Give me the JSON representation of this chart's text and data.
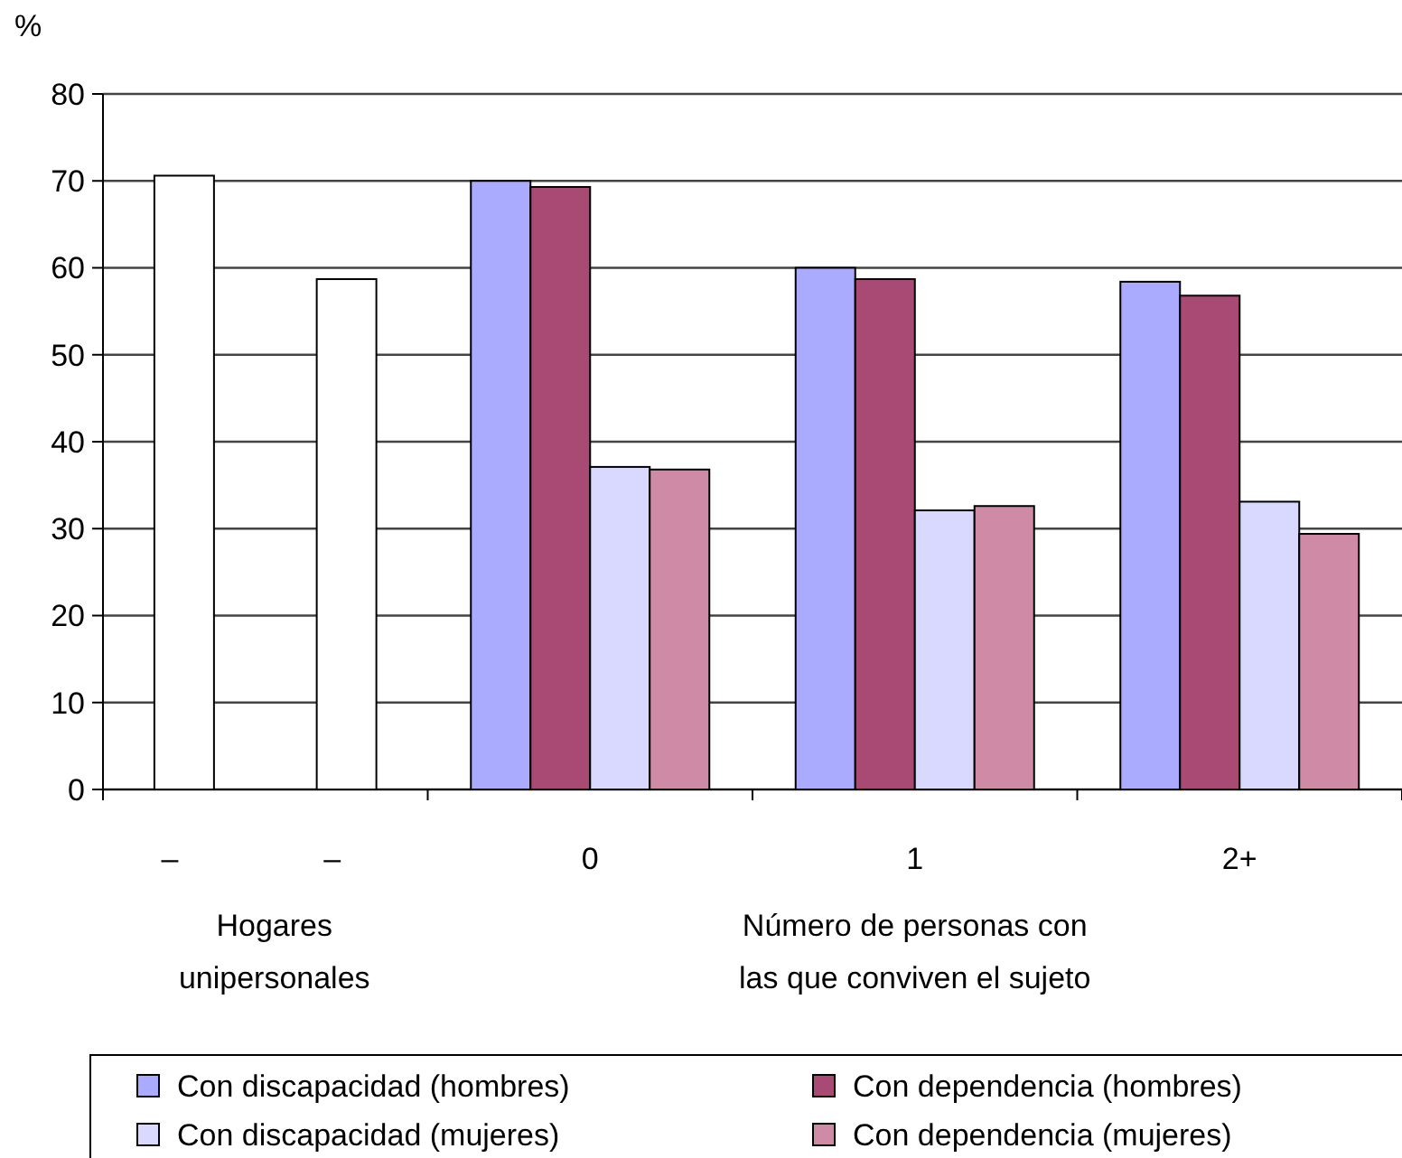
{
  "chart_data": {
    "type": "bar",
    "ylabel": "%",
    "xlabel": "Número de personas con las que conviven el sujeto",
    "annotations": [
      "Hogares unipersonales"
    ],
    "categories": [
      "–",
      "–",
      "0",
      "1",
      "2+"
    ],
    "series": [
      {
        "color": "#ffffff",
        "values": [
          70.6,
          null,
          null,
          null,
          null
        ]
      },
      {
        "color": "#ffffff",
        "values": [
          null,
          58.7,
          null,
          null,
          null
        ]
      },
      {
        "name": "Con discapacidad (hombres)",
        "color": "#aaaaff",
        "values": [
          null,
          null,
          70.0,
          60.0,
          58.4
        ]
      },
      {
        "name": "Con dependencia (hombres)",
        "color": "#a94a74",
        "values": [
          null,
          null,
          69.3,
          58.7,
          56.8
        ]
      },
      {
        "name": "Con discapacidad (mujeres)",
        "color": "#d9d9ff",
        "values": [
          null,
          null,
          37.1,
          32.1,
          33.1
        ]
      },
      {
        "name": "Con dependencia (mujeres)",
        "color": "#cf8aa6",
        "values": [
          null,
          null,
          36.8,
          32.6,
          29.4
        ]
      }
    ],
    "ylim": [
      0,
      80
    ],
    "yticks": [
      0,
      10,
      20,
      30,
      40,
      50,
      60,
      70,
      80
    ],
    "grid": "y",
    "legend": "bottom"
  }
}
